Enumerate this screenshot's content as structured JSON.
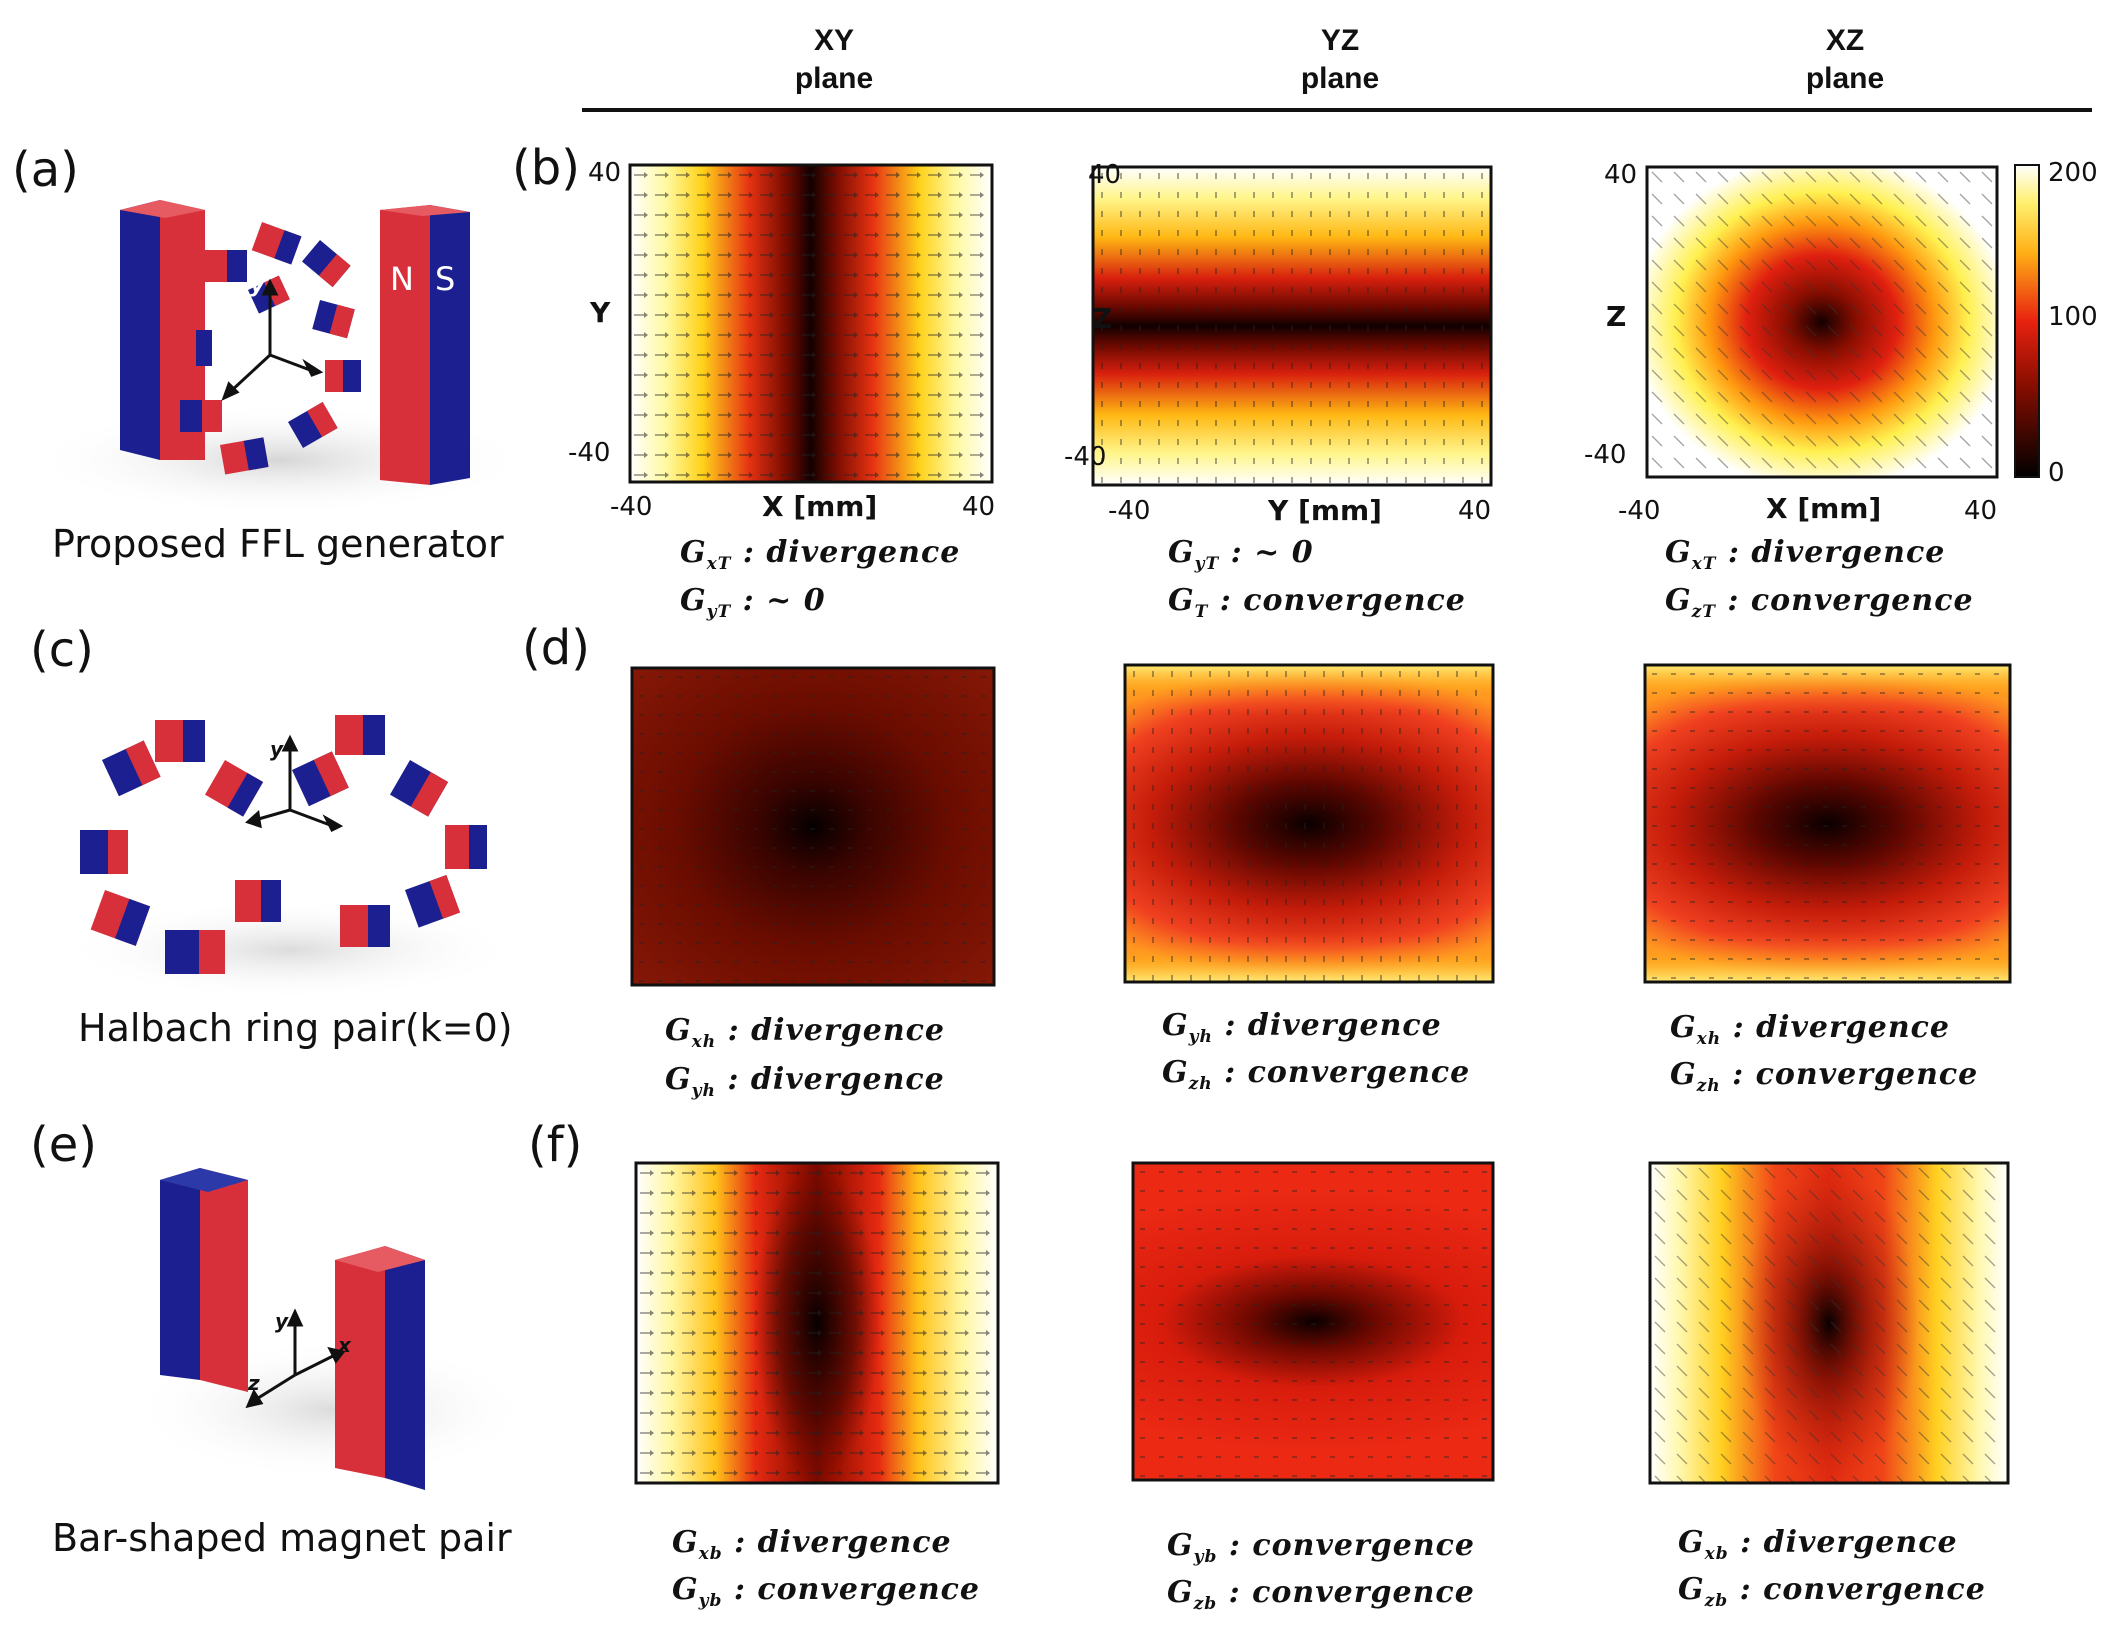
{
  "headers": [
    {
      "line1": "XY",
      "line2": "plane"
    },
    {
      "line1": "YZ",
      "line2": "plane"
    },
    {
      "line1": "XZ",
      "line2": "plane"
    }
  ],
  "panel_labels": {
    "a": "(a)",
    "b": "(b)",
    "c": "(c)",
    "d": "(d)",
    "e": "(e)",
    "f": "(f)"
  },
  "captions": {
    "a": "Proposed FFL generator",
    "c": "Halbach ring pair(k=0)",
    "e": "Bar-shaped magnet pair"
  },
  "magnet_labels": {
    "n": "N",
    "s": "S",
    "x": "x",
    "y": "y",
    "z": "z"
  },
  "colors": {
    "red": "#d8303a",
    "blue": "#1b1f8f"
  },
  "plots_b": [
    {
      "ylabel": "Y",
      "xlabel": "X [mm]",
      "xmin": "-40",
      "xmax": "40",
      "ymin": "-40",
      "ymax": "40"
    },
    {
      "ylabel": "Z",
      "xlabel": "Y [mm]",
      "xmin": "-40",
      "xmax": "40",
      "ymin": "-40",
      "ymax": "40"
    },
    {
      "ylabel": "Z",
      "xlabel": "X [mm]",
      "xmin": "-40",
      "xmax": "40",
      "ymin": "-40",
      "ymax": "40"
    }
  ],
  "colorbar": {
    "max": "200",
    "mid": "100",
    "min": "0"
  },
  "equations": {
    "b": [
      {
        "g1": "G",
        "s1": "xT",
        "t1": " : divergence",
        "g2": "G",
        "s2": "yT",
        "t2": " : ~ 0"
      },
      {
        "g1": "G",
        "s1": "yT",
        "t1": " : ~ 0",
        "g2": "G",
        "s2": "T",
        "t2": " : convergence"
      },
      {
        "g1": "G",
        "s1": "xT",
        "t1": " : divergence",
        "g2": "G",
        "s2": "zT",
        "t2": " : convergence"
      }
    ],
    "d": [
      {
        "g1": "G",
        "s1": "xh",
        "t1": " : divergence",
        "g2": "G",
        "s2": "yh",
        "t2": " : divergence"
      },
      {
        "g1": "G",
        "s1": "yh",
        "t1": " : divergence",
        "g2": "G",
        "s2": "zh",
        "t2": " : convergence"
      },
      {
        "g1": "G",
        "s1": "xh",
        "t1": " : divergence",
        "g2": "G",
        "s2": "zh",
        "t2": " : convergence"
      }
    ],
    "f": [
      {
        "g1": "G",
        "s1": "xb",
        "t1": " : divergence",
        "g2": "G",
        "s2": "yb",
        "t2": " : convergence"
      },
      {
        "g1": "G",
        "s1": "yb",
        "t1": " : convergence",
        "g2": "G",
        "s2": "zb",
        "t2": " : convergence"
      },
      {
        "g1": "G",
        "s1": "xb",
        "t1": " : divergence",
        "g2": "G",
        "s2": "zb",
        "t2": " : convergence"
      }
    ]
  }
}
